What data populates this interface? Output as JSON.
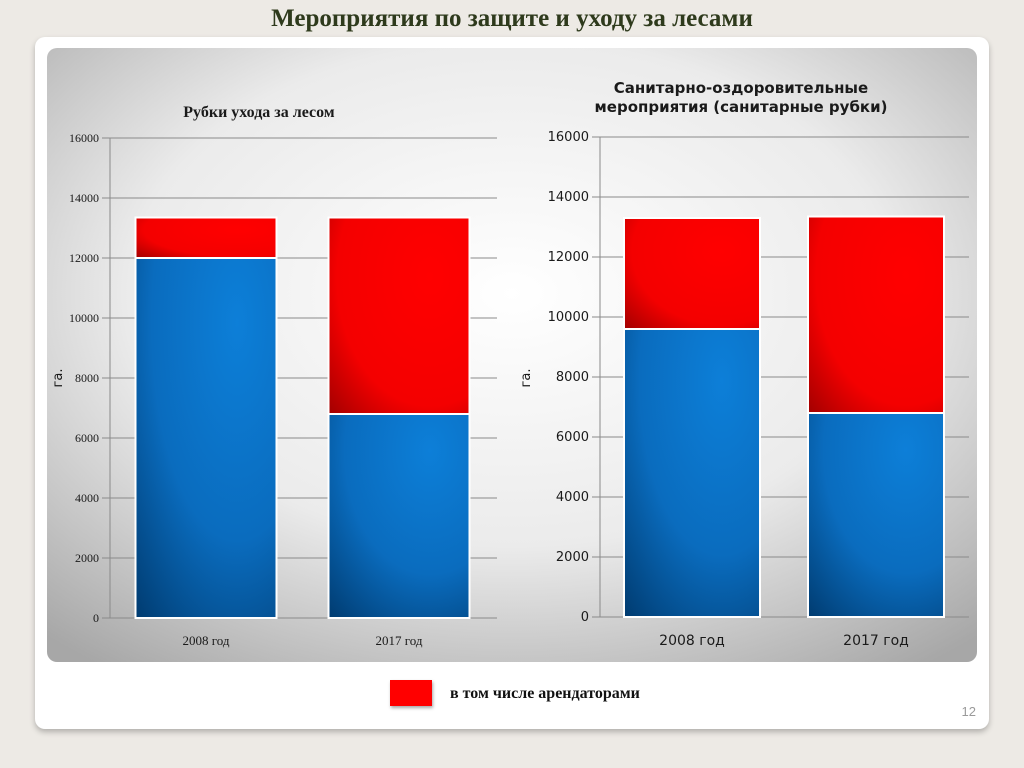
{
  "slide": {
    "title": "Мероприятия по защите и уходу за лесами",
    "page_number": "12"
  },
  "legend": {
    "label": "в том числе арендаторами",
    "color": "#ff0000"
  },
  "colors": {
    "total_series": "#0a74c9",
    "tenants_series": "#ff0000"
  },
  "chart_data": [
    {
      "type": "bar",
      "stacked": true,
      "title": "Рубки ухода за лесом",
      "ylabel": "га.",
      "ylim": [
        0,
        16000
      ],
      "yticks": [
        0,
        2000,
        4000,
        6000,
        8000,
        10000,
        12000,
        14000,
        16000
      ],
      "grid": true,
      "categories": [
        "2008 год",
        "2017 год"
      ],
      "series": [
        {
          "key": "blue",
          "values": [
            12000,
            6800
          ]
        },
        {
          "key": "red",
          "values": [
            1350,
            6550
          ]
        }
      ]
    },
    {
      "type": "bar",
      "stacked": true,
      "title": "Санитарно-оздоровительные мероприятия (санитарные рубки)",
      "title_lines": [
        "Санитарно-оздоровительные",
        "мероприятия (санитарные рубки)"
      ],
      "ylabel": "га.",
      "ylim": [
        0,
        16000
      ],
      "yticks": [
        0,
        2000,
        4000,
        6000,
        8000,
        10000,
        12000,
        14000,
        16000
      ],
      "grid": true,
      "categories": [
        "2008 год",
        "2017 год"
      ],
      "series": [
        {
          "key": "blue",
          "values": [
            9600,
            6800
          ]
        },
        {
          "key": "red",
          "values": [
            3700,
            6550
          ]
        }
      ]
    }
  ]
}
